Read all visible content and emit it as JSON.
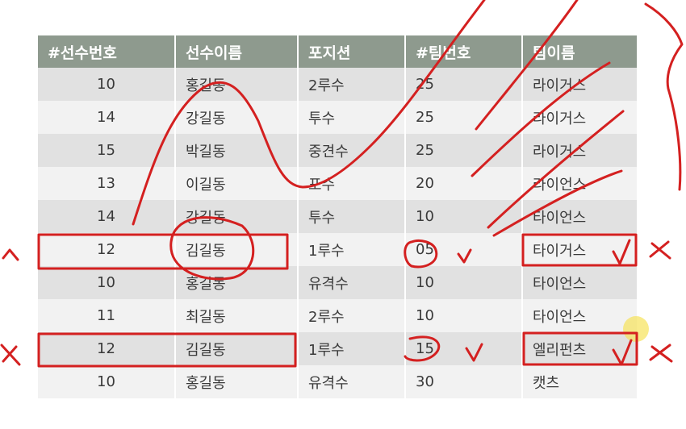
{
  "table": {
    "headers": [
      "#선수번호",
      "선수이름",
      "포지션",
      "#팀번호",
      "팀이름"
    ],
    "rows": [
      [
        "10",
        "홍길동",
        "2루수",
        "25",
        "라이거스"
      ],
      [
        "14",
        "강길동",
        "투수",
        "25",
        "라이거스"
      ],
      [
        "15",
        "박길동",
        "중견수",
        "25",
        "라이거스"
      ],
      [
        "13",
        "이길동",
        "포수",
        "20",
        "라이언스"
      ],
      [
        "14",
        "강길동",
        "투수",
        "10",
        "타이언스"
      ],
      [
        "12",
        "김길동",
        "1루수",
        "05",
        "타이거스"
      ],
      [
        "10",
        "홍길동",
        "유격수",
        "10",
        "타이언스"
      ],
      [
        "11",
        "최길동",
        "2루수",
        "10",
        "타이언스"
      ],
      [
        "12",
        "김길동",
        "1루수",
        "15",
        "엘리펀츠"
      ],
      [
        "10",
        "홍길동",
        "유격수",
        "30",
        "캣츠"
      ]
    ]
  },
  "annotations": {
    "ink_color": "#d42020",
    "highlight_color": "#f7e25a"
  }
}
